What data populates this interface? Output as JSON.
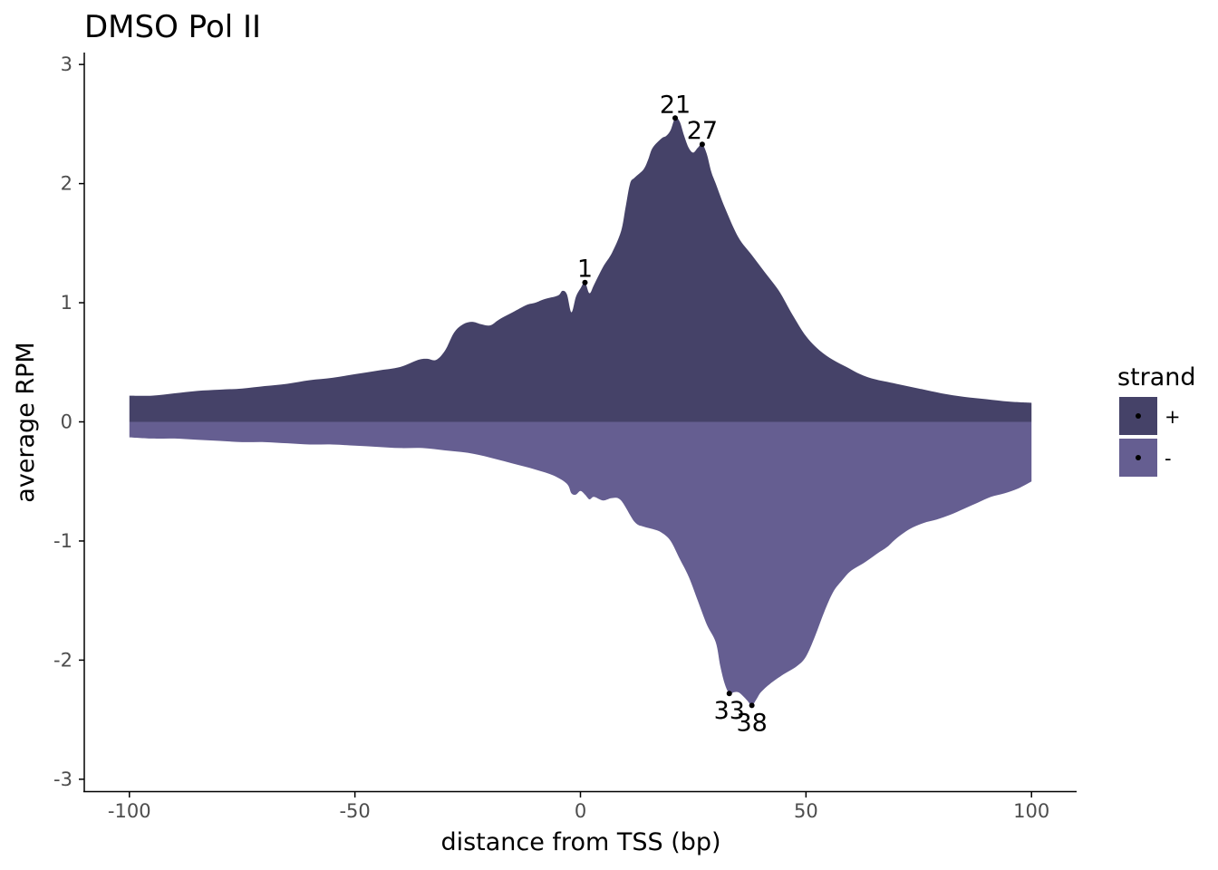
{
  "chart_data": {
    "type": "area",
    "title": "DMSO Pol II",
    "xlabel": "distance from TSS (bp)",
    "ylabel": "average RPM",
    "xlim": [
      -110,
      110
    ],
    "ylim": [
      -3.1,
      3.1
    ],
    "x_ticks": [
      -100,
      -50,
      0,
      50,
      100
    ],
    "x_tick_labels": [
      "-100",
      "-50",
      "0",
      "50",
      "100"
    ],
    "y_ticks": [
      -3,
      -2,
      -1,
      0,
      1,
      2,
      3
    ],
    "y_tick_labels": [
      "-3",
      "-2",
      "-1",
      "0",
      "1",
      "2",
      "3"
    ],
    "grid": false,
    "legend": {
      "title": "strand",
      "position": "right",
      "entries": [
        {
          "label": "+",
          "color": "#454268"
        },
        {
          "label": "-",
          "color": "#655e91"
        }
      ]
    },
    "series": [
      {
        "name": "+",
        "color": "#454268",
        "points": [
          [
            -100,
            0.22
          ],
          [
            -95,
            0.22
          ],
          [
            -90,
            0.24
          ],
          [
            -85,
            0.26
          ],
          [
            -80,
            0.27
          ],
          [
            -75,
            0.28
          ],
          [
            -70,
            0.3
          ],
          [
            -65,
            0.32
          ],
          [
            -60,
            0.35
          ],
          [
            -55,
            0.37
          ],
          [
            -50,
            0.4
          ],
          [
            -45,
            0.43
          ],
          [
            -40,
            0.46
          ],
          [
            -36,
            0.52
          ],
          [
            -34,
            0.53
          ],
          [
            -32,
            0.52
          ],
          [
            -30,
            0.6
          ],
          [
            -28,
            0.75
          ],
          [
            -26,
            0.82
          ],
          [
            -24,
            0.84
          ],
          [
            -22,
            0.82
          ],
          [
            -20,
            0.81
          ],
          [
            -18,
            0.86
          ],
          [
            -15,
            0.92
          ],
          [
            -12,
            0.98
          ],
          [
            -10,
            1.0
          ],
          [
            -8,
            1.03
          ],
          [
            -5,
            1.06
          ],
          [
            -4,
            1.1
          ],
          [
            -3,
            1.07
          ],
          [
            -2,
            0.92
          ],
          [
            -1,
            1.05
          ],
          [
            0,
            1.12
          ],
          [
            1,
            1.17
          ],
          [
            2,
            1.08
          ],
          [
            3,
            1.15
          ],
          [
            5,
            1.3
          ],
          [
            7,
            1.42
          ],
          [
            9,
            1.6
          ],
          [
            10,
            1.8
          ],
          [
            11,
            2.0
          ],
          [
            12,
            2.05
          ],
          [
            14,
            2.12
          ],
          [
            15,
            2.2
          ],
          [
            16,
            2.3
          ],
          [
            18,
            2.38
          ],
          [
            19,
            2.4
          ],
          [
            20,
            2.45
          ],
          [
            21,
            2.55
          ],
          [
            22,
            2.52
          ],
          [
            23,
            2.4
          ],
          [
            24,
            2.3
          ],
          [
            25,
            2.26
          ],
          [
            26,
            2.3
          ],
          [
            27,
            2.33
          ],
          [
            28,
            2.25
          ],
          [
            29,
            2.1
          ],
          [
            30,
            2.0
          ],
          [
            32,
            1.8
          ],
          [
            35,
            1.55
          ],
          [
            38,
            1.4
          ],
          [
            41,
            1.25
          ],
          [
            44,
            1.1
          ],
          [
            47,
            0.9
          ],
          [
            50,
            0.72
          ],
          [
            53,
            0.6
          ],
          [
            56,
            0.52
          ],
          [
            59,
            0.46
          ],
          [
            62,
            0.4
          ],
          [
            65,
            0.36
          ],
          [
            70,
            0.32
          ],
          [
            75,
            0.28
          ],
          [
            80,
            0.24
          ],
          [
            85,
            0.21
          ],
          [
            90,
            0.19
          ],
          [
            95,
            0.17
          ],
          [
            100,
            0.16
          ]
        ],
        "labeled_points": [
          {
            "x": 1,
            "y": 1.17,
            "label": "1"
          },
          {
            "x": 21,
            "y": 2.55,
            "label": "21"
          },
          {
            "x": 27,
            "y": 2.33,
            "label": "27"
          }
        ]
      },
      {
        "name": "-",
        "color": "#655e91",
        "points": [
          [
            -100,
            -0.13
          ],
          [
            -95,
            -0.14
          ],
          [
            -90,
            -0.14
          ],
          [
            -85,
            -0.15
          ],
          [
            -80,
            -0.16
          ],
          [
            -75,
            -0.17
          ],
          [
            -70,
            -0.17
          ],
          [
            -65,
            -0.18
          ],
          [
            -60,
            -0.19
          ],
          [
            -55,
            -0.19
          ],
          [
            -50,
            -0.2
          ],
          [
            -45,
            -0.21
          ],
          [
            -40,
            -0.22
          ],
          [
            -35,
            -0.22
          ],
          [
            -30,
            -0.24
          ],
          [
            -25,
            -0.26
          ],
          [
            -20,
            -0.3
          ],
          [
            -15,
            -0.35
          ],
          [
            -10,
            -0.4
          ],
          [
            -6,
            -0.45
          ],
          [
            -3,
            -0.52
          ],
          [
            -2,
            -0.6
          ],
          [
            -1,
            -0.61
          ],
          [
            0,
            -0.58
          ],
          [
            1,
            -0.61
          ],
          [
            2,
            -0.65
          ],
          [
            3,
            -0.63
          ],
          [
            5,
            -0.66
          ],
          [
            7,
            -0.64
          ],
          [
            9,
            -0.66
          ],
          [
            12,
            -0.84
          ],
          [
            14,
            -0.88
          ],
          [
            16,
            -0.9
          ],
          [
            18,
            -0.93
          ],
          [
            20,
            -1.0
          ],
          [
            22,
            -1.15
          ],
          [
            24,
            -1.3
          ],
          [
            26,
            -1.5
          ],
          [
            28,
            -1.7
          ],
          [
            30,
            -1.85
          ],
          [
            31,
            -2.05
          ],
          [
            32,
            -2.2
          ],
          [
            33,
            -2.28
          ],
          [
            34,
            -2.27
          ],
          [
            35,
            -2.27
          ],
          [
            36,
            -2.3
          ],
          [
            37,
            -2.34
          ],
          [
            38,
            -2.38
          ],
          [
            39,
            -2.33
          ],
          [
            40,
            -2.27
          ],
          [
            42,
            -2.2
          ],
          [
            45,
            -2.12
          ],
          [
            48,
            -2.05
          ],
          [
            50,
            -1.97
          ],
          [
            52,
            -1.8
          ],
          [
            54,
            -1.6
          ],
          [
            56,
            -1.43
          ],
          [
            58,
            -1.33
          ],
          [
            60,
            -1.25
          ],
          [
            63,
            -1.18
          ],
          [
            66,
            -1.1
          ],
          [
            68,
            -1.05
          ],
          [
            70,
            -0.98
          ],
          [
            73,
            -0.9
          ],
          [
            76,
            -0.85
          ],
          [
            79,
            -0.82
          ],
          [
            82,
            -0.78
          ],
          [
            85,
            -0.73
          ],
          [
            88,
            -0.68
          ],
          [
            91,
            -0.63
          ],
          [
            94,
            -0.6
          ],
          [
            97,
            -0.56
          ],
          [
            100,
            -0.5
          ]
        ],
        "labeled_points": [
          {
            "x": 33,
            "y": -2.28,
            "label": "33"
          },
          {
            "x": 38,
            "y": -2.38,
            "label": "38"
          }
        ]
      }
    ]
  }
}
